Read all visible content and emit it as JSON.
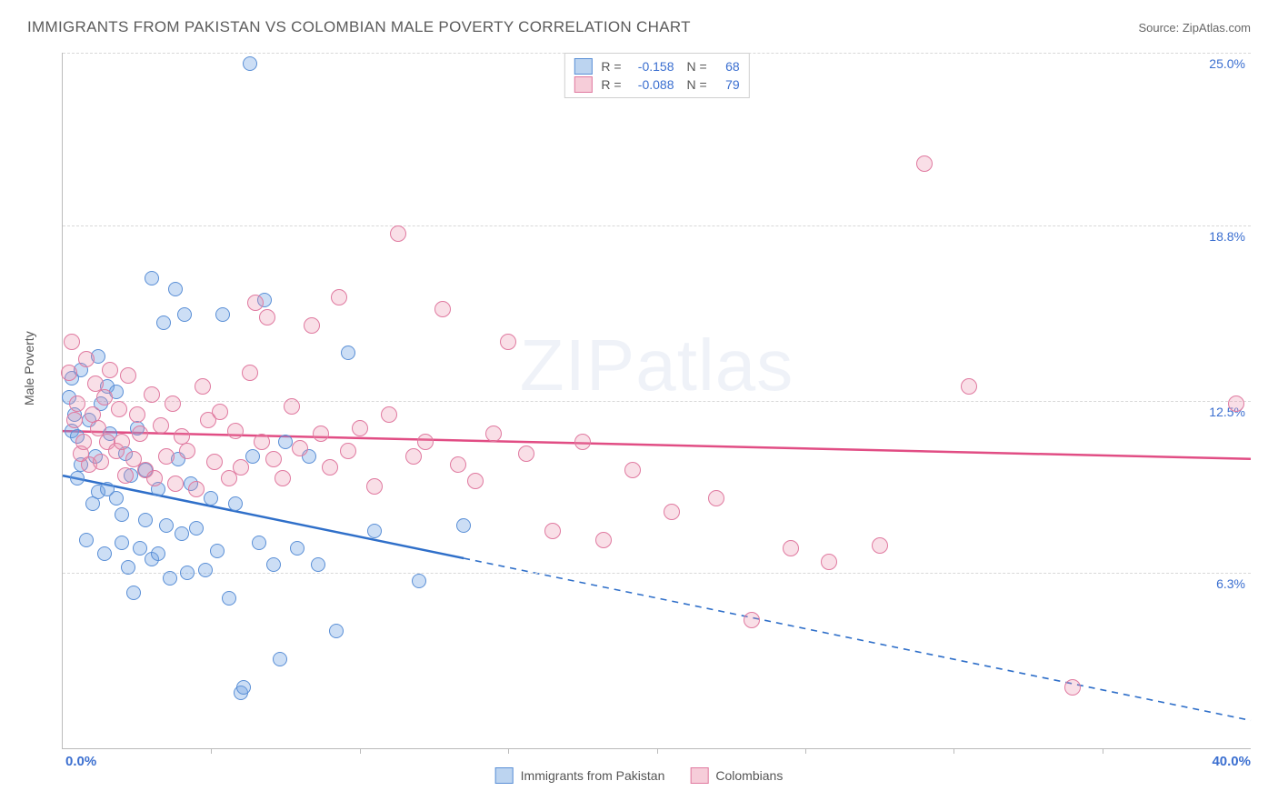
{
  "title": "IMMIGRANTS FROM PAKISTAN VS COLOMBIAN MALE POVERTY CORRELATION CHART",
  "source": "Source: ZipAtlas.com",
  "watermark_a": "ZIP",
  "watermark_b": "atlas",
  "y_axis_label": "Male Poverty",
  "axes": {
    "xlim": [
      0,
      40
    ],
    "ylim": [
      0,
      25
    ],
    "x_min_label": "0.0%",
    "x_max_label": "40.0%",
    "y_ticks": [
      {
        "v": 6.3,
        "label": "6.3%"
      },
      {
        "v": 12.5,
        "label": "12.5%"
      },
      {
        "v": 18.8,
        "label": "18.8%"
      },
      {
        "v": 25.0,
        "label": "25.0%"
      }
    ],
    "x_tick_positions": [
      5,
      10,
      15,
      20,
      25,
      30,
      35
    ]
  },
  "series": [
    {
      "name": "Immigrants from Pakistan",
      "fill": "rgba(110,160,225,0.35)",
      "stroke": "#5a8fd6",
      "line_color": "#2f6fc9",
      "swatch_fill": "#bcd4f0",
      "swatch_border": "#5a8fd6",
      "R_label": "R =",
      "R": "-0.158",
      "N_label": "N =",
      "N": "68",
      "trend": {
        "y_at_x0": 9.8,
        "y_at_x40": 1.0,
        "solid_until_x": 13.5
      },
      "marker_r": 8,
      "points": [
        [
          0.2,
          12.6
        ],
        [
          0.3,
          11.4
        ],
        [
          0.3,
          13.3
        ],
        [
          0.4,
          12.0
        ],
        [
          0.5,
          11.2
        ],
        [
          0.5,
          9.7
        ],
        [
          0.6,
          10.2
        ],
        [
          0.6,
          13.6
        ],
        [
          0.8,
          7.5
        ],
        [
          0.9,
          11.8
        ],
        [
          1.0,
          8.8
        ],
        [
          1.1,
          10.5
        ],
        [
          1.2,
          9.2
        ],
        [
          1.2,
          14.1
        ],
        [
          1.3,
          12.4
        ],
        [
          1.4,
          7.0
        ],
        [
          1.5,
          9.3
        ],
        [
          1.5,
          13.0
        ],
        [
          1.6,
          11.3
        ],
        [
          1.8,
          9.0
        ],
        [
          1.8,
          12.8
        ],
        [
          2.0,
          7.4
        ],
        [
          2.0,
          8.4
        ],
        [
          2.1,
          10.6
        ],
        [
          2.2,
          6.5
        ],
        [
          2.3,
          9.8
        ],
        [
          2.4,
          5.6
        ],
        [
          2.5,
          11.5
        ],
        [
          2.6,
          7.2
        ],
        [
          2.8,
          8.2
        ],
        [
          2.8,
          10.0
        ],
        [
          3.0,
          6.8
        ],
        [
          3.0,
          16.9
        ],
        [
          3.2,
          9.3
        ],
        [
          3.2,
          7.0
        ],
        [
          3.4,
          15.3
        ],
        [
          3.5,
          8.0
        ],
        [
          3.6,
          6.1
        ],
        [
          3.8,
          16.5
        ],
        [
          3.9,
          10.4
        ],
        [
          4.0,
          7.7
        ],
        [
          4.1,
          15.6
        ],
        [
          4.2,
          6.3
        ],
        [
          4.3,
          9.5
        ],
        [
          4.5,
          7.9
        ],
        [
          4.8,
          6.4
        ],
        [
          5.0,
          9.0
        ],
        [
          5.2,
          7.1
        ],
        [
          5.4,
          15.6
        ],
        [
          5.6,
          5.4
        ],
        [
          5.8,
          8.8
        ],
        [
          6.0,
          2.0
        ],
        [
          6.1,
          2.2
        ],
        [
          6.3,
          24.6
        ],
        [
          6.4,
          10.5
        ],
        [
          6.6,
          7.4
        ],
        [
          6.8,
          16.1
        ],
        [
          7.1,
          6.6
        ],
        [
          7.3,
          3.2
        ],
        [
          7.5,
          11.0
        ],
        [
          7.9,
          7.2
        ],
        [
          8.3,
          10.5
        ],
        [
          8.6,
          6.6
        ],
        [
          9.2,
          4.2
        ],
        [
          9.6,
          14.2
        ],
        [
          10.5,
          7.8
        ],
        [
          12.0,
          6.0
        ],
        [
          13.5,
          8.0
        ]
      ]
    },
    {
      "name": "Colombians",
      "fill": "rgba(235,140,170,0.28)",
      "stroke": "#e07aa0",
      "line_color": "#e14d84",
      "swatch_fill": "#f6cdd9",
      "swatch_border": "#e07aa0",
      "R_label": "R =",
      "R": "-0.088",
      "N_label": "N =",
      "N": "79",
      "trend": {
        "y_at_x0": 11.4,
        "y_at_x40": 10.4,
        "solid_until_x": 40
      },
      "marker_r": 9,
      "points": [
        [
          0.2,
          13.5
        ],
        [
          0.3,
          14.6
        ],
        [
          0.4,
          11.8
        ],
        [
          0.5,
          12.4
        ],
        [
          0.6,
          10.6
        ],
        [
          0.7,
          11.0
        ],
        [
          0.8,
          14.0
        ],
        [
          0.9,
          10.2
        ],
        [
          1.0,
          12.0
        ],
        [
          1.1,
          13.1
        ],
        [
          1.2,
          11.5
        ],
        [
          1.3,
          10.3
        ],
        [
          1.4,
          12.6
        ],
        [
          1.5,
          11.0
        ],
        [
          1.6,
          13.6
        ],
        [
          1.8,
          10.7
        ],
        [
          1.9,
          12.2
        ],
        [
          2.0,
          11.0
        ],
        [
          2.1,
          9.8
        ],
        [
          2.2,
          13.4
        ],
        [
          2.4,
          10.4
        ],
        [
          2.5,
          12.0
        ],
        [
          2.6,
          11.3
        ],
        [
          2.8,
          10.0
        ],
        [
          3.0,
          12.7
        ],
        [
          3.1,
          9.7
        ],
        [
          3.3,
          11.6
        ],
        [
          3.5,
          10.5
        ],
        [
          3.7,
          12.4
        ],
        [
          3.8,
          9.5
        ],
        [
          4.0,
          11.2
        ],
        [
          4.2,
          10.7
        ],
        [
          4.5,
          9.3
        ],
        [
          4.7,
          13.0
        ],
        [
          4.9,
          11.8
        ],
        [
          5.1,
          10.3
        ],
        [
          5.3,
          12.1
        ],
        [
          5.6,
          9.7
        ],
        [
          5.8,
          11.4
        ],
        [
          6.0,
          10.1
        ],
        [
          6.3,
          13.5
        ],
        [
          6.5,
          16.0
        ],
        [
          6.7,
          11.0
        ],
        [
          6.9,
          15.5
        ],
        [
          7.1,
          10.4
        ],
        [
          7.4,
          9.7
        ],
        [
          7.7,
          12.3
        ],
        [
          8.0,
          10.8
        ],
        [
          8.4,
          15.2
        ],
        [
          8.7,
          11.3
        ],
        [
          9.0,
          10.1
        ],
        [
          9.3,
          16.2
        ],
        [
          9.6,
          10.7
        ],
        [
          10.0,
          11.5
        ],
        [
          10.5,
          9.4
        ],
        [
          11.0,
          12.0
        ],
        [
          11.3,
          18.5
        ],
        [
          11.8,
          10.5
        ],
        [
          12.2,
          11.0
        ],
        [
          12.8,
          15.8
        ],
        [
          13.3,
          10.2
        ],
        [
          13.9,
          9.6
        ],
        [
          14.5,
          11.3
        ],
        [
          15.0,
          14.6
        ],
        [
          15.6,
          10.6
        ],
        [
          16.5,
          7.8
        ],
        [
          17.5,
          11.0
        ],
        [
          18.2,
          7.5
        ],
        [
          19.2,
          10.0
        ],
        [
          20.5,
          8.5
        ],
        [
          22.0,
          9.0
        ],
        [
          23.2,
          4.6
        ],
        [
          24.5,
          7.2
        ],
        [
          25.8,
          6.7
        ],
        [
          27.5,
          7.3
        ],
        [
          29.0,
          21.0
        ],
        [
          30.5,
          13.0
        ],
        [
          34.0,
          2.2
        ],
        [
          39.5,
          12.4
        ]
      ]
    }
  ],
  "legend_bottom": [
    {
      "label": "Immigrants from Pakistan",
      "series": 0
    },
    {
      "label": "Colombians",
      "series": 1
    }
  ]
}
